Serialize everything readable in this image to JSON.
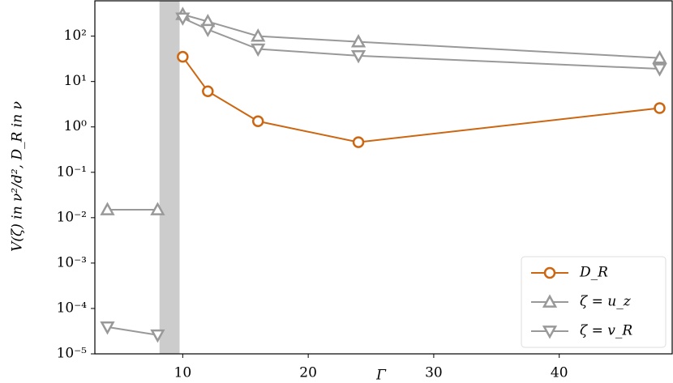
{
  "chart_data": {
    "type": "line",
    "x_label": "Γ",
    "y_label": "V(ζ) in ν²/d², D_R in ν",
    "y_scale": "log",
    "xlim": [
      3,
      49
    ],
    "ylim": [
      1e-05,
      600
    ],
    "xticks": [
      10,
      20,
      30,
      40
    ],
    "yticks": [
      {
        "value": 1e-05,
        "label": "10⁻⁵"
      },
      {
        "value": 0.0001,
        "label": "10⁻⁴"
      },
      {
        "value": 0.001,
        "label": "10⁻³"
      },
      {
        "value": 0.01,
        "label": "10⁻²"
      },
      {
        "value": 0.1,
        "label": "10⁻¹"
      },
      {
        "value": 1,
        "label": "10⁰"
      },
      {
        "value": 10,
        "label": "10¹"
      },
      {
        "value": 100,
        "label": "10²"
      }
    ],
    "shaded_span": [
      8.15,
      9.75
    ],
    "shaded_color": "#cccccc",
    "legend": "lower right",
    "x": [
      4,
      8,
      10,
      12,
      16,
      24,
      48
    ],
    "series": [
      {
        "name": "D_R",
        "color": "#cc6611",
        "marker": "circle",
        "values": [
          null,
          null,
          35,
          6.1,
          1.33,
          0.46,
          2.6
        ]
      },
      {
        "name": "ζ = u_z",
        "color": "#999999",
        "marker": "triangle-up",
        "values": [
          0.015,
          0.015,
          300,
          210,
          100,
          75,
          33
        ]
      },
      {
        "name": "ζ = v_R",
        "color": "#999999",
        "marker": "triangle-down",
        "values": [
          3.9e-05,
          2.6e-05,
          250,
          140,
          52,
          37,
          19
        ]
      }
    ]
  }
}
